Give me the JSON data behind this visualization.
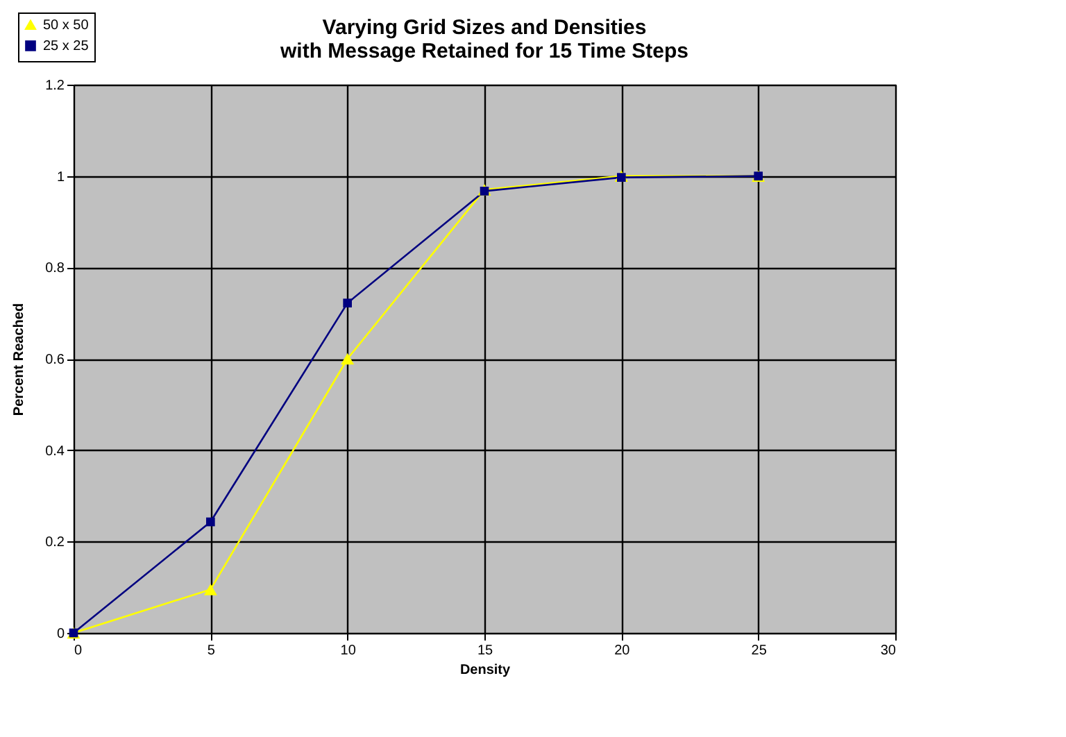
{
  "chart_data": {
    "type": "line",
    "title": [
      "Varying Grid Sizes and Densities",
      "with Message Retained for 15 Time Steps"
    ],
    "xlabel": "Density",
    "ylabel": "Percent Reached",
    "x": [
      0,
      5,
      10,
      15,
      20,
      25
    ],
    "series": [
      {
        "name": "50 x 50",
        "color": "#ffff00",
        "marker": "triangle",
        "values": [
          0,
          0.095,
          0.6,
          0.97,
          1.0,
          1.0
        ]
      },
      {
        "name": "25 x 25",
        "color": "#000080",
        "marker": "square",
        "values": [
          0,
          0.243,
          0.722,
          0.967,
          0.997,
          1.0
        ]
      }
    ],
    "xlim": [
      0,
      30
    ],
    "xticks": [
      0,
      5,
      10,
      15,
      20,
      25,
      30
    ],
    "ylim": [
      0,
      1.2
    ],
    "yticks": [
      0,
      0.2,
      0.4,
      0.6,
      0.8,
      1,
      1.2
    ],
    "grid": true,
    "legend": "top left",
    "line_style": "solid"
  }
}
